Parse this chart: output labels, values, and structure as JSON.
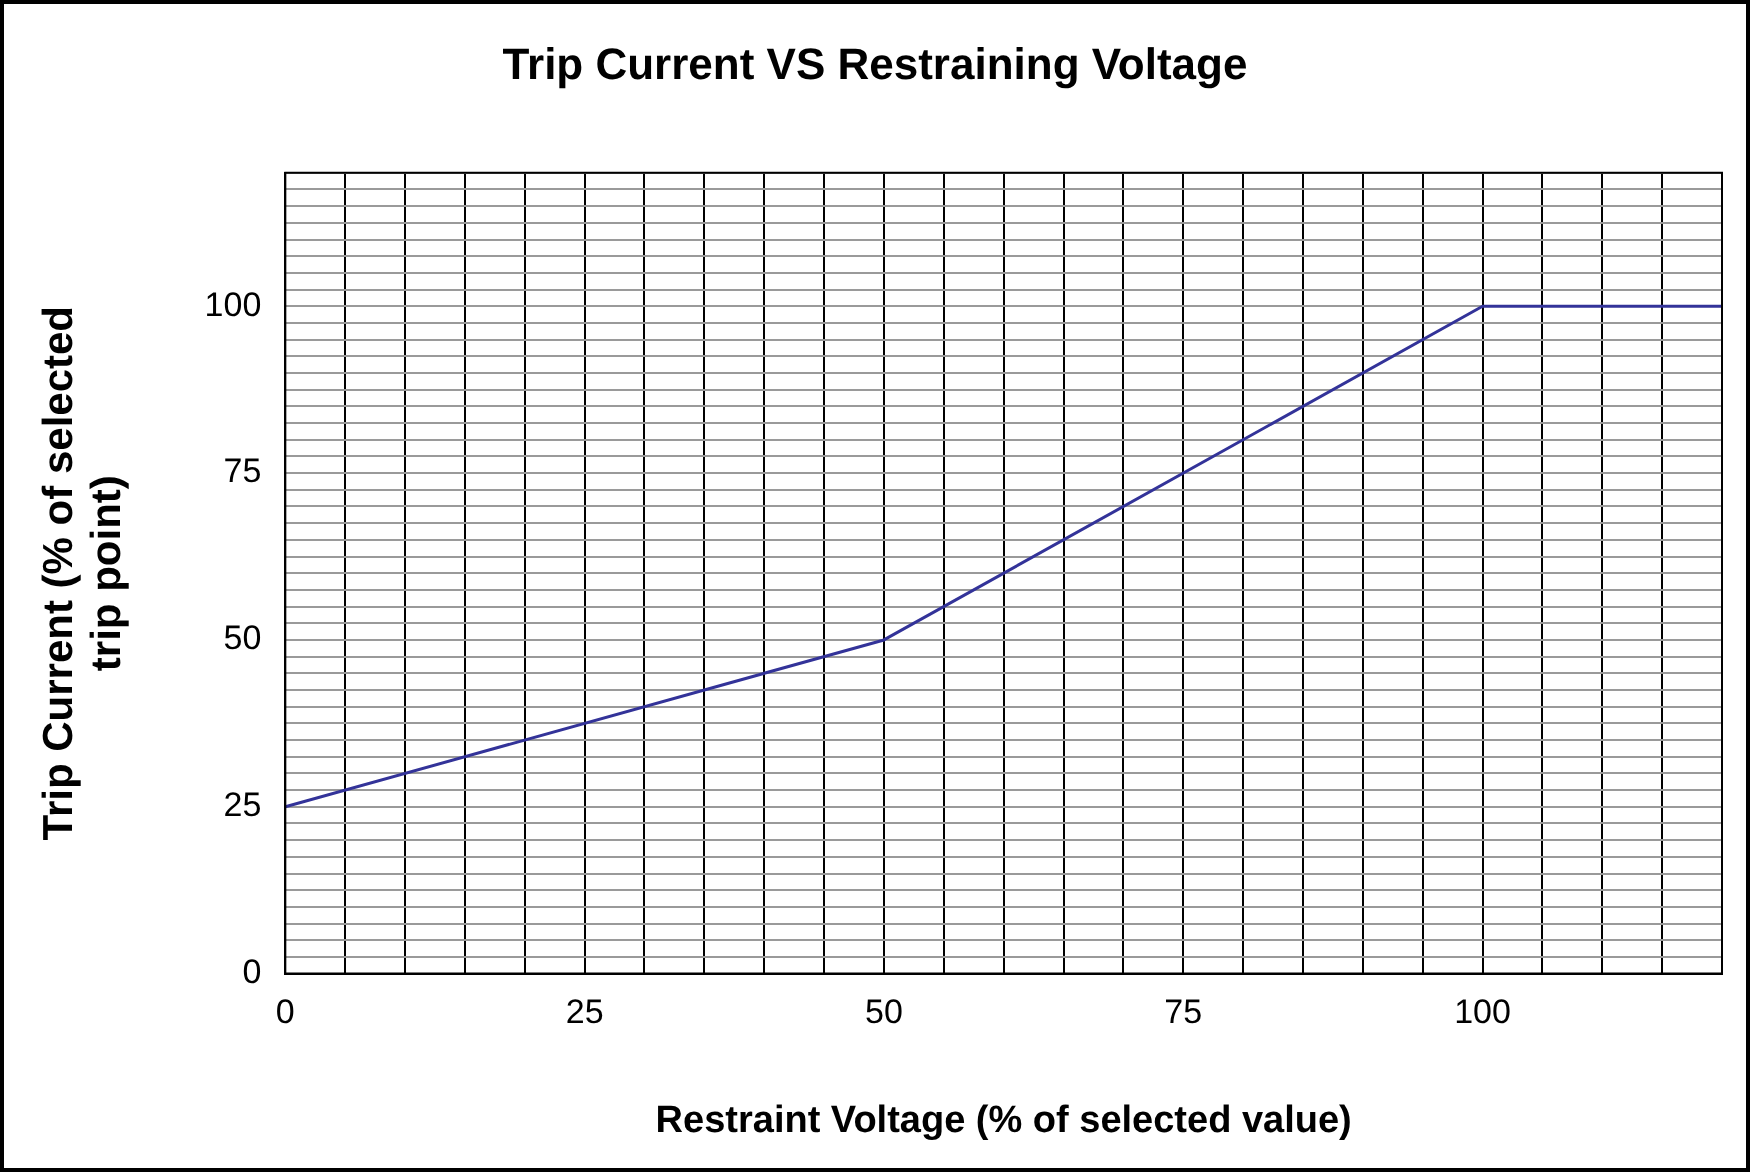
{
  "chart_data": {
    "type": "line",
    "title": "Trip Current VS Restraining Voltage",
    "xlabel": "Restraint Voltage (% of selected value)",
    "ylabel": "Trip Current (% of selected\ntrip point)",
    "x": [
      0,
      50,
      100,
      120
    ],
    "series": [
      {
        "color": "#333399",
        "values": [
          25,
          50,
          100,
          100
        ]
      }
    ],
    "xlim": [
      0,
      120
    ],
    "ylim": [
      0,
      120
    ],
    "xticks": [
      0,
      {
        "value": 5,
        "label": null
      },
      {
        "value": 10,
        "label": null
      },
      {
        "value": 15,
        "label": null
      },
      {
        "value": 20,
        "label": null
      },
      25,
      {
        "value": 30,
        "label": null
      },
      {
        "value": 35,
        "label": null
      },
      {
        "value": 40,
        "label": null
      },
      {
        "value": 45,
        "label": null
      },
      50,
      {
        "value": 55,
        "label": null
      },
      {
        "value": 60,
        "label": null
      },
      {
        "value": 65,
        "label": null
      },
      {
        "value": 70,
        "label": null
      },
      75,
      {
        "value": 80,
        "label": null
      },
      {
        "value": 85,
        "label": null
      },
      {
        "value": 90,
        "label": null
      },
      {
        "value": 95,
        "label": null
      },
      100,
      {
        "value": 105,
        "label": null
      },
      {
        "value": 110,
        "label": null
      },
      {
        "value": 115,
        "label": null
      },
      {
        "value": 120,
        "label": null
      }
    ],
    "yticks": [
      0,
      {
        "value": 2.5,
        "label": null
      },
      {
        "value": 5,
        "label": null
      },
      {
        "value": 7.5,
        "label": null
      },
      {
        "value": 10,
        "label": null
      },
      {
        "value": 12.5,
        "label": null
      },
      {
        "value": 15,
        "label": null
      },
      {
        "value": 17.5,
        "label": null
      },
      {
        "value": 20,
        "label": null
      },
      {
        "value": 22.5,
        "label": null
      },
      25,
      {
        "value": 27.5,
        "label": null
      },
      {
        "value": 30,
        "label": null
      },
      {
        "value": 32.5,
        "label": null
      },
      {
        "value": 35,
        "label": null
      },
      {
        "value": 37.5,
        "label": null
      },
      {
        "value": 40,
        "label": null
      },
      {
        "value": 42.5,
        "label": null
      },
      {
        "value": 45,
        "label": null
      },
      {
        "value": 47.5,
        "label": null
      },
      50,
      {
        "value": 52.5,
        "label": null
      },
      {
        "value": 55,
        "label": null
      },
      {
        "value": 57.5,
        "label": null
      },
      {
        "value": 60,
        "label": null
      },
      {
        "value": 62.5,
        "label": null
      },
      {
        "value": 65,
        "label": null
      },
      {
        "value": 67.5,
        "label": null
      },
      {
        "value": 70,
        "label": null
      },
      {
        "value": 72.5,
        "label": null
      },
      75,
      {
        "value": 77.5,
        "label": null
      },
      {
        "value": 80,
        "label": null
      },
      {
        "value": 82.5,
        "label": null
      },
      {
        "value": 85,
        "label": null
      },
      {
        "value": 87.5,
        "label": null
      },
      {
        "value": 90,
        "label": null
      },
      {
        "value": 92.5,
        "label": null
      },
      {
        "value": 95,
        "label": null
      },
      {
        "value": 97.5,
        "label": null
      },
      100,
      {
        "value": 102.5,
        "label": null
      },
      {
        "value": 105,
        "label": null
      },
      {
        "value": 107.5,
        "label": null
      },
      {
        "value": 110,
        "label": null
      },
      {
        "value": 112.5,
        "label": null
      },
      {
        "value": 115,
        "label": null
      },
      {
        "value": 117.5,
        "label": null
      },
      {
        "value": 120,
        "label": null
      }
    ],
    "grid": true,
    "legend": false,
    "marker": "none",
    "line_style": "solid"
  }
}
